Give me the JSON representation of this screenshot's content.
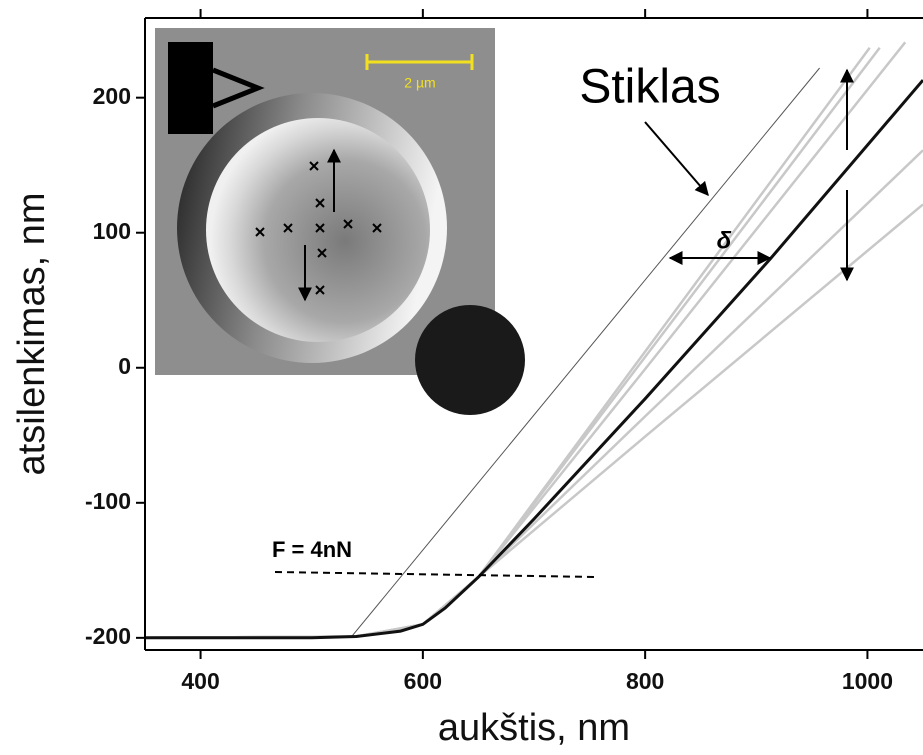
{
  "chart_data": {
    "type": "line",
    "x_label": "aukštis, nm",
    "y_label": "atsilenkimas, nm",
    "xlim": [
      350,
      1050
    ],
    "ylim": [
      -209,
      259
    ],
    "xticks": [
      400,
      600,
      800,
      1000
    ],
    "yticks": [
      -200,
      -100,
      0,
      100,
      200
    ],
    "series": [
      {
        "color": "#c8c8c8",
        "x": [
          350,
          540,
          600,
          650,
          800,
          1002
        ],
        "values": [
          -200,
          -199,
          -190,
          -155,
          12,
          237
        ]
      },
      {
        "color": "#c8c8c8",
        "x": [
          350,
          540,
          600,
          650,
          800,
          1011
        ],
        "values": [
          -200,
          -199,
          -190,
          -155,
          8,
          237
        ]
      },
      {
        "color": "#c8c8c8",
        "x": [
          350,
          540,
          600,
          650,
          800,
          1034
        ],
        "values": [
          -200,
          -199,
          -190,
          -155,
          -1,
          241
        ]
      },
      {
        "color": "#c8c8c8",
        "x": [
          350,
          540,
          600,
          650,
          800,
          1050
        ],
        "values": [
          -200,
          -199,
          -190,
          -155,
          -36,
          161
        ]
      },
      {
        "color": "#c8c8c8",
        "x": [
          350,
          540,
          600,
          650,
          800,
          1050
        ],
        "values": [
          -200,
          -199,
          -190,
          -155,
          -51,
          121
        ]
      },
      {
        "color": "#555555",
        "x": [
          535,
          957
        ],
        "values": [
          -200,
          222
        ]
      },
      {
        "color": "#111111",
        "x": [
          350,
          500,
          540,
          580,
          600,
          620,
          650,
          700,
          800,
          913,
          1050
        ],
        "values": [
          -200,
          -200,
          -199,
          -195,
          -190,
          -178,
          -155,
          -112,
          -23,
          81,
          213
        ]
      }
    ],
    "annotations": {
      "glass": "Stiklas",
      "delta": "δ",
      "force": "F = 4nN"
    },
    "inset_scale_label": "2 µm"
  }
}
